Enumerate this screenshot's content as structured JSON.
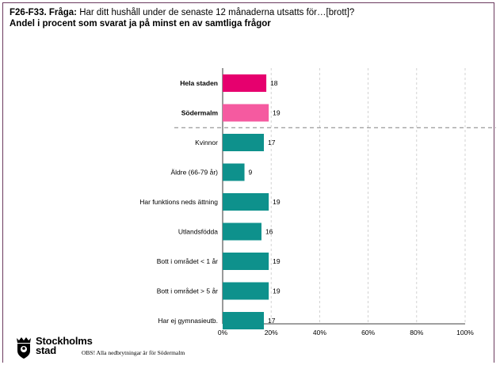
{
  "title": {
    "lead": "F26-F33. Fråga:",
    "question": " Har ditt hushåll under de senaste 12 månaderna utsatts för…[brott]?",
    "subtitle": "Andel i procent som svarat ja på minst en av samtliga frågor"
  },
  "chart_data": {
    "type": "bar",
    "orientation": "horizontal",
    "categories": [
      "Hela staden",
      "Södermalm",
      "Kvinnor",
      "Äldre (66-79 år)",
      "Har funktions neds ättning",
      "Utlandsfödda",
      "Bott i området < 1 år",
      "Bott i området > 5 år",
      "Har ej gymnasieutb."
    ],
    "values": [
      18,
      19,
      17,
      9,
      19,
      16,
      19,
      19,
      17
    ],
    "value_labels": [
      "18",
      "19",
      "17",
      "9",
      "19",
      "16",
      "19",
      "19",
      "17"
    ],
    "bold_categories": [
      "Hela staden",
      "Södermalm"
    ],
    "bar_colors": [
      "#e6006e",
      "#f55aa0",
      "#0e918c",
      "#0e918c",
      "#0e918c",
      "#0e918c",
      "#0e918c",
      "#0e918c",
      "#0e918c"
    ],
    "xlim": [
      0,
      100
    ],
    "xticks": [
      "0%",
      "20%",
      "40%",
      "60%",
      "80%",
      "100%"
    ],
    "grid": "vertical dashed",
    "separator_after": "Södermalm"
  },
  "logo": {
    "line1": "Stockholms",
    "line2": "stad"
  },
  "footnote": "OBS! Alla nedbrytningar är för Södermalm"
}
